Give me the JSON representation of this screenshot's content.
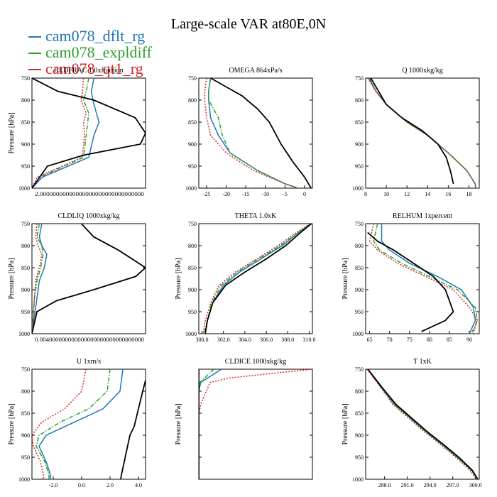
{
  "title": "Large-scale VAR at80E,0N",
  "legend": [
    {
      "name": "cam078_dflt_rg",
      "color": "#1f77b4",
      "dash": "solid"
    },
    {
      "name": "cam078_expldiff",
      "color": "#2ca02c",
      "dash": "dashdot"
    },
    {
      "name": "cam078_qt1_rg",
      "color": "#d62728",
      "dash": "dotted"
    }
  ],
  "ref_color": "#000000",
  "chart_data": [
    {
      "type": "line",
      "title": "CLDFRAC 1.0xfraction",
      "ylabel": "Pressure [hPa]",
      "ylim": [
        1000,
        750
      ],
      "xlim": [
        0,
        0.22
      ],
      "xticks": [],
      "xtick_label": "2.00000000000000000000000000000000",
      "series": [
        {
          "name": "cam078_dflt_rg",
          "x": [
            0.12,
            0.115,
            0.118,
            0.125,
            0.13,
            0.12,
            0.11,
            0.02,
            0.0
          ],
          "y": [
            750,
            780,
            800,
            830,
            850,
            880,
            930,
            975,
            1000
          ]
        },
        {
          "name": "cam078_expldiff",
          "x": [
            0.11,
            0.105,
            0.1,
            0.11,
            0.108,
            0.105,
            0.1,
            0.015,
            0.0
          ],
          "y": [
            750,
            780,
            800,
            830,
            850,
            880,
            930,
            975,
            1000
          ]
        },
        {
          "name": "cam078_qt1_rg",
          "x": [
            0.1,
            0.098,
            0.095,
            0.105,
            0.1,
            0.102,
            0.097,
            0.01,
            0.0
          ],
          "y": [
            750,
            780,
            800,
            830,
            850,
            880,
            930,
            975,
            1000
          ]
        },
        {
          "name": "reference",
          "x": [
            0.0,
            0.05,
            0.12,
            0.2,
            0.22,
            0.21,
            0.1,
            0.03,
            0.0
          ],
          "y": [
            750,
            780,
            800,
            840,
            875,
            900,
            925,
            950,
            1000
          ]
        }
      ]
    },
    {
      "type": "line",
      "title": "OMEGA 864xPa/s",
      "ylabel": "",
      "ylim": [
        1000,
        750
      ],
      "xlim": [
        -27,
        2
      ],
      "xticks": [
        -25,
        -20,
        -15,
        -10,
        -5,
        0
      ],
      "series": [
        {
          "name": "cam078_dflt_rg",
          "x": [
            -24,
            -24.5,
            -24.5,
            -24,
            -22,
            -19,
            -12,
            -5,
            0
          ],
          "y": [
            750,
            780,
            800,
            840,
            880,
            920,
            960,
            990,
            1005
          ]
        },
        {
          "name": "cam078_expldiff",
          "x": [
            -24,
            -24.5,
            -24.5,
            -22,
            -21,
            -19,
            -12,
            -5,
            0
          ],
          "y": [
            750,
            780,
            800,
            840,
            880,
            920,
            960,
            990,
            1005
          ]
        },
        {
          "name": "cam078_qt1_rg",
          "x": [
            -25,
            -25.5,
            -25.5,
            -25,
            -24,
            -20,
            -13,
            -5,
            0
          ],
          "y": [
            750,
            780,
            800,
            840,
            880,
            920,
            960,
            990,
            1005
          ]
        },
        {
          "name": "reference",
          "x": [
            -24,
            -20,
            -16,
            -12,
            -9,
            -6,
            -3,
            0,
            2
          ],
          "y": [
            750,
            770,
            790,
            820,
            850,
            900,
            940,
            975,
            1005
          ]
        }
      ]
    },
    {
      "type": "line",
      "title": "Q 1000xkg/kg",
      "ylabel": "",
      "ylim": [
        1000,
        750
      ],
      "xlim": [
        8,
        19
      ],
      "xticks": [
        8,
        10,
        12,
        14,
        16,
        18
      ],
      "series": [
        {
          "name": "cam078_dflt_rg",
          "x": [
            8.3,
            9,
            10,
            12,
            14,
            16,
            17.8,
            18.6,
            18.7
          ],
          "y": [
            750,
            780,
            810,
            850,
            880,
            920,
            960,
            990,
            1005
          ]
        },
        {
          "name": "cam078_expldiff",
          "x": [
            8.4,
            9,
            10,
            12,
            14,
            16,
            17.8,
            18.6,
            18.7
          ],
          "y": [
            750,
            780,
            810,
            850,
            880,
            920,
            960,
            990,
            1005
          ]
        },
        {
          "name": "cam078_qt1_rg",
          "x": [
            8.2,
            9,
            10,
            12,
            14,
            16,
            17.8,
            18.6,
            18.7
          ],
          "y": [
            750,
            780,
            810,
            850,
            880,
            920,
            960,
            990,
            1005
          ]
        },
        {
          "name": "reference",
          "x": [
            8.5,
            9.5,
            10,
            11.5,
            13.5,
            15,
            15.8,
            16.2,
            16.5
          ],
          "y": [
            750,
            790,
            810,
            840,
            870,
            900,
            930,
            960,
            990
          ]
        }
      ]
    },
    {
      "type": "line",
      "title": "CLDLIQ 1000xkg/kg",
      "ylabel": "Pressure [hPa]",
      "ylim": [
        1000,
        750
      ],
      "xlim": [
        0,
        0.046
      ],
      "xticks": [],
      "xtick_label": "0.004000000000000000000000000000000",
      "series": [
        {
          "name": "cam078_dflt_rg",
          "x": [
            0.004,
            0.003,
            0.004,
            0.006,
            0.005,
            0.003,
            0.002,
            0.001,
            0.0
          ],
          "y": [
            750,
            780,
            800,
            820,
            850,
            880,
            920,
            960,
            1000
          ]
        },
        {
          "name": "cam078_expldiff",
          "x": [
            0.003,
            0.002,
            0.004,
            0.0045,
            0.0035,
            0.002,
            0.001,
            0.0005,
            0.0
          ],
          "y": [
            750,
            780,
            800,
            820,
            850,
            880,
            920,
            960,
            1000
          ]
        },
        {
          "name": "cam078_qt1_rg",
          "x": [
            0.002,
            0.0015,
            0.0025,
            0.004,
            0.003,
            0.0015,
            0.001,
            0.0005,
            0.0
          ],
          "y": [
            750,
            780,
            800,
            820,
            850,
            880,
            920,
            960,
            1000
          ]
        },
        {
          "name": "reference",
          "x": [
            0.02,
            0.025,
            0.035,
            0.046,
            0.042,
            0.025,
            0.01,
            0.002,
            0.0
          ],
          "y": [
            750,
            780,
            810,
            850,
            870,
            900,
            925,
            950,
            1000
          ]
        }
      ]
    },
    {
      "type": "line",
      "title": "THETA 1.0xK",
      "ylabel": "Pressure [hPa]",
      "ylim": [
        1000,
        750
      ],
      "xlim": [
        299.7,
        310.3
      ],
      "xticks": [
        300.0,
        302.0,
        304.0,
        306.0,
        308.0,
        310.0
      ],
      "series": [
        {
          "name": "cam078_dflt_rg",
          "x": [
            310.2,
            309,
            307.5,
            305.5,
            303.5,
            302,
            301,
            300.5,
            300.3
          ],
          "y": [
            750,
            770,
            800,
            830,
            860,
            890,
            930,
            970,
            1000
          ]
        },
        {
          "name": "cam078_expldiff",
          "x": [
            310.2,
            309,
            307.3,
            305.3,
            303.3,
            301.8,
            300.9,
            300.5,
            300.2
          ],
          "y": [
            750,
            770,
            800,
            830,
            860,
            890,
            930,
            970,
            1000
          ]
        },
        {
          "name": "cam078_qt1_rg",
          "x": [
            310.1,
            308.8,
            307.1,
            305.1,
            303.1,
            301.6,
            300.8,
            300.3,
            300.1
          ],
          "y": [
            750,
            770,
            800,
            830,
            860,
            890,
            930,
            970,
            1000
          ]
        },
        {
          "name": "reference",
          "x": [
            310.2,
            309.2,
            307.8,
            306,
            304,
            302.2,
            301,
            300.5,
            300.3
          ],
          "y": [
            750,
            770,
            800,
            830,
            860,
            890,
            930,
            970,
            1000
          ]
        }
      ]
    },
    {
      "type": "line",
      "title": "RELHUM 1xpercent",
      "ylabel": "Pressure [hPa]",
      "ylim": [
        1000,
        750
      ],
      "xlim": [
        64,
        92.5
      ],
      "xticks": [
        65.0,
        70.0,
        75.0,
        80.0,
        85.0,
        90.0
      ],
      "series": [
        {
          "name": "cam078_dflt_rg",
          "x": [
            68,
            68,
            70,
            75,
            82,
            88,
            91,
            91.5,
            90
          ],
          "y": [
            750,
            790,
            810,
            840,
            870,
            900,
            940,
            970,
            1000
          ]
        },
        {
          "name": "cam078_expldiff",
          "x": [
            67,
            66,
            67.5,
            73,
            80,
            87,
            91.5,
            92,
            90.5
          ],
          "y": [
            750,
            790,
            810,
            840,
            870,
            900,
            940,
            970,
            1000
          ]
        },
        {
          "name": "cam078_qt1_rg",
          "x": [
            66,
            65,
            67,
            72,
            79,
            86,
            90,
            92,
            91
          ],
          "y": [
            750,
            790,
            810,
            840,
            870,
            900,
            940,
            970,
            1000
          ]
        },
        {
          "name": "reference",
          "x": [
            64.5,
            67,
            71,
            76,
            81,
            84,
            86,
            84,
            78
          ],
          "y": [
            770,
            790,
            810,
            840,
            870,
            900,
            950,
            970,
            995
          ]
        }
      ]
    },
    {
      "type": "line",
      "title": "U 1xm/s",
      "ylabel": "Pressure [hPa]",
      "ylim": [
        1000,
        750
      ],
      "xlim": [
        -3.5,
        4.5
      ],
      "xticks": [
        -2.0,
        0.0,
        2.0,
        4.0
      ],
      "series": [
        {
          "name": "cam078_dflt_rg",
          "x": [
            2.9,
            2.7,
            1.5,
            -0.5,
            -2.5,
            -3.0,
            -2.5,
            -2.2,
            -2.2
          ],
          "y": [
            750,
            800,
            840,
            870,
            900,
            925,
            960,
            990,
            1010
          ]
        },
        {
          "name": "cam078_expldiff",
          "x": [
            2.0,
            1.8,
            0.5,
            -1.5,
            -3.0,
            -3.2,
            -2.6,
            -2.3,
            -2.3
          ],
          "y": [
            750,
            800,
            840,
            870,
            900,
            925,
            960,
            990,
            1010
          ]
        },
        {
          "name": "cam078_qt1_rg",
          "x": [
            0.3,
            0,
            -1.2,
            -2.8,
            -3.5,
            -3.4,
            -2.9,
            -2.7,
            -2.7
          ],
          "y": [
            750,
            800,
            840,
            870,
            900,
            925,
            960,
            990,
            1010
          ]
        },
        {
          "name": "reference",
          "x": [
            4.5,
            4.3,
            4.0,
            3.7,
            3.4,
            3.2,
            3.0,
            2.8,
            2.7
          ],
          "y": [
            775,
            800,
            840,
            880,
            900,
            930,
            960,
            990,
            1010
          ]
        }
      ]
    },
    {
      "type": "line",
      "title": "CLDICE 1000xkg/kg",
      "ylabel": "Pressure [hPa]",
      "ylim": [
        1000,
        750
      ],
      "xlim": [
        0,
        0.03
      ],
      "xticks": [],
      "series": [
        {
          "name": "cam078_dflt_rg",
          "x": [
            0.006,
            0.0005,
            0.0,
            0.0,
            0.0
          ],
          "y": [
            750,
            780,
            800,
            900,
            1000
          ]
        },
        {
          "name": "cam078_expldiff",
          "x": [
            0.004,
            0.0003,
            0.0,
            0.0,
            0.0
          ],
          "y": [
            750,
            780,
            800,
            900,
            1000
          ]
        },
        {
          "name": "cam078_qt1_rg",
          "x": [
            0.03,
            0.008,
            0.003,
            0.0007,
            0.0
          ],
          "y": [
            750,
            770,
            780,
            825,
            850
          ]
        },
        {
          "name": "reference",
          "x": [
            0,
            0
          ],
          "y": [
            750,
            1000
          ]
        }
      ]
    },
    {
      "type": "line",
      "title": "T 1xK",
      "ylabel": "Pressure [hPa]",
      "ylim": [
        1000,
        750
      ],
      "xlim": [
        285.5,
        300.5
      ],
      "xticks": [
        288.0,
        291.0,
        294.0,
        297.0,
        300.0
      ],
      "series": [
        {
          "name": "cam078_dflt_rg",
          "x": [
            285.8,
            287.5,
            289.3,
            291.3,
            293.3,
            295.5,
            297.6,
            299.5,
            300.3
          ],
          "y": [
            750,
            790,
            830,
            860,
            890,
            920,
            950,
            980,
            1000
          ]
        },
        {
          "name": "cam078_expldiff",
          "x": [
            285.8,
            287.5,
            289.3,
            291.3,
            293.3,
            295.5,
            297.6,
            299.5,
            300.3
          ],
          "y": [
            750,
            790,
            830,
            860,
            890,
            920,
            950,
            980,
            1000
          ]
        },
        {
          "name": "cam078_qt1_rg",
          "x": [
            285.7,
            287.4,
            289.1,
            291.1,
            293.1,
            295.3,
            297.4,
            299.3,
            300.1
          ],
          "y": [
            750,
            790,
            830,
            860,
            890,
            920,
            950,
            980,
            1000
          ]
        },
        {
          "name": "reference",
          "x": [
            285.8,
            287.6,
            289.5,
            291.5,
            293.5,
            295.7,
            297.8,
            299.6,
            300.3
          ],
          "y": [
            750,
            790,
            830,
            860,
            890,
            920,
            950,
            980,
            1000
          ]
        }
      ]
    }
  ]
}
